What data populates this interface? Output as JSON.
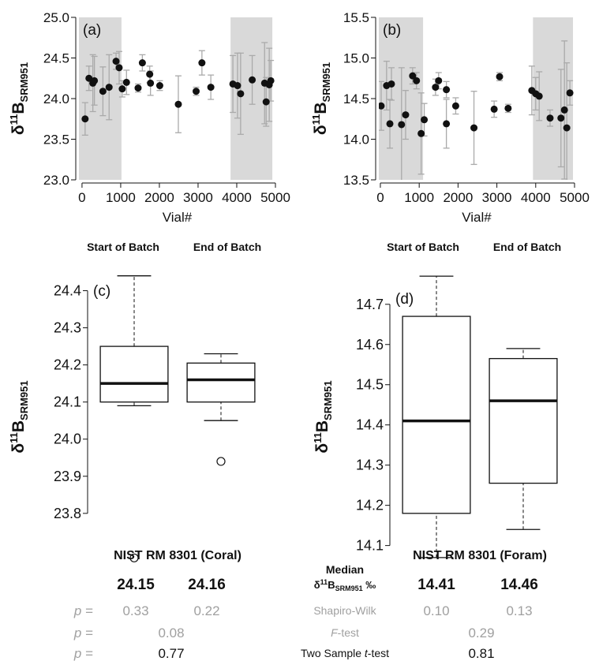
{
  "chart_data": [
    {
      "type": "scatter",
      "panel_label": "(a)",
      "xlabel": "Vial#",
      "ylabel": {
        "symbol": "δ",
        "sup": "11",
        "base": "B",
        "sub": "SRM951"
      },
      "x": [
        80,
        180,
        280,
        320,
        540,
        700,
        880,
        960,
        1040,
        1150,
        1450,
        1560,
        1750,
        1770,
        2010,
        2490,
        2950,
        3100,
        3330,
        3900,
        4020,
        4100,
        4400,
        4720,
        4760,
        4840,
        4880
      ],
      "y": [
        23.75,
        24.25,
        24.19,
        24.22,
        24.09,
        24.14,
        24.46,
        24.38,
        24.12,
        24.2,
        24.13,
        24.44,
        24.3,
        24.19,
        24.16,
        23.93,
        24.09,
        24.44,
        24.14,
        24.18,
        24.16,
        24.06,
        24.23,
        24.19,
        23.96,
        24.17,
        24.22
      ],
      "error": [
        0.2,
        0.15,
        0.35,
        0.3,
        0.3,
        0.4,
        0.1,
        0.2,
        0.1,
        0.15,
        0.05,
        0.1,
        0.1,
        0.15,
        0.06,
        0.35,
        0.05,
        0.15,
        0.15,
        0.35,
        0.4,
        0.5,
        0.3,
        0.5,
        0.3,
        0.45,
        0.25
      ],
      "color": "#111111",
      "error_color": "#aaaaaa",
      "shaded_regions": [
        [
          -80,
          1020
        ],
        [
          3840,
          4920
        ]
      ],
      "shade_color": "#d9d9d9",
      "region_labels": [
        "Start of Batch",
        "End of Batch"
      ],
      "xlim": [
        -80,
        5000
      ],
      "ylim": [
        23.0,
        25.0
      ],
      "xticks": [
        0,
        1000,
        2000,
        3000,
        4000,
        5000
      ],
      "yticks": [
        {
          "value": 23.0,
          "label": "23.0"
        },
        23.5,
        {
          "value": 24.0,
          "label": "24.0"
        },
        24.5,
        {
          "value": 25.0,
          "label": "25.0"
        }
      ]
    },
    {
      "type": "scatter",
      "panel_label": "(b)",
      "xlabel": "Vial#",
      "ylabel": {
        "symbol": "δ",
        "sup": "11",
        "base": "B",
        "sub": "SRM951"
      },
      "x": [
        20,
        160,
        245,
        285,
        545,
        650,
        830,
        930,
        1050,
        1130,
        1420,
        1500,
        1700,
        1700,
        1940,
        2410,
        2930,
        3070,
        3290,
        3900,
        4000,
        4090,
        4370,
        4650,
        4740,
        4800,
        4880
      ],
      "y": [
        14.41,
        14.66,
        14.19,
        14.68,
        14.18,
        14.3,
        14.78,
        14.72,
        14.07,
        14.24,
        14.64,
        14.72,
        14.61,
        14.19,
        14.41,
        14.14,
        14.37,
        14.77,
        14.38,
        14.6,
        14.56,
        14.53,
        14.26,
        14.26,
        14.36,
        14.14,
        14.57
      ],
      "error": [
        0.3,
        0.3,
        0.3,
        0.2,
        0.7,
        0.3,
        0.1,
        0.1,
        0.5,
        0.2,
        0.1,
        0.1,
        0.1,
        0.3,
        0.1,
        0.45,
        0.1,
        0.05,
        0.05,
        0.3,
        0.2,
        0.3,
        0.1,
        0.6,
        0.85,
        0.8,
        0.15
      ],
      "color": "#111111",
      "error_color": "#aaaaaa",
      "shaded_regions": [
        [
          -40,
          1100
        ],
        [
          3930,
          4960
        ]
      ],
      "shade_color": "#d9d9d9",
      "region_labels": [
        "Start of Batch",
        "End of Batch"
      ],
      "xlim": [
        -40,
        5000
      ],
      "ylim": [
        13.5,
        15.5
      ],
      "xticks": [
        0,
        1000,
        2000,
        3000,
        4000,
        5000
      ],
      "yticks": [
        13.5,
        {
          "value": 14.0,
          "label": "14.0"
        },
        14.5,
        {
          "value": 15.0,
          "label": "15.0"
        },
        15.5
      ]
    },
    {
      "type": "box",
      "panel_label": "(c)",
      "xlabel": "NIST RM 8301 (Coral)",
      "ylabel": {
        "symbol": "δ",
        "sup": "11",
        "base": "B",
        "sub": "SRM951"
      },
      "boxes": [
        {
          "whislo": 24.09,
          "q1": 24.1,
          "med": 24.15,
          "q3": 24.25,
          "whishi": 24.44,
          "fliers": [
            23.68
          ]
        },
        {
          "whislo": 24.05,
          "q1": 24.1,
          "med": 24.16,
          "q3": 24.205,
          "whishi": 24.23,
          "fliers": [
            23.94
          ]
        }
      ],
      "color": "#111111",
      "ylim": [
        23.67,
        24.45
      ],
      "yticks": [
        23.8,
        23.9,
        {
          "value": 24.0,
          "label": "24.0"
        },
        24.1,
        24.2,
        24.3,
        24.4
      ]
    },
    {
      "type": "box",
      "panel_label": "(d)",
      "xlabel": "NIST RM 8301 (Foram)",
      "ylabel": {
        "symbol": "δ",
        "sup": "11",
        "base": "B",
        "sub": "SRM951"
      },
      "boxes": [
        {
          "whislo": 14.07,
          "q1": 14.18,
          "med": 14.41,
          "q3": 14.67,
          "whishi": 14.77,
          "fliers": []
        },
        {
          "whislo": 14.14,
          "q1": 14.255,
          "med": 14.46,
          "q3": 14.565,
          "whishi": 14.59,
          "fliers": []
        }
      ],
      "color": "#111111",
      "ylim": [
        14.06,
        14.78
      ],
      "yticks": [
        14.1,
        14.2,
        14.3,
        14.4,
        14.5,
        14.6,
        14.7
      ]
    }
  ],
  "stats_table": {
    "median_label": {
      "title": "Median",
      "symbol": "δ",
      "sup": "11",
      "base": "B",
      "sub": "SRM951",
      "unit": " ‰"
    },
    "median_values": [
      "24.15",
      "24.16",
      "14.41",
      "14.46"
    ],
    "rows": [
      {
        "prefix": [
          "p",
          " ="
        ],
        "label": [
          "Shapiro-Wilk"
        ],
        "values": [
          "0.33",
          "0.22",
          "0.10",
          "0.13"
        ]
      },
      {
        "prefix": [
          "p",
          " ="
        ],
        "label": [
          "F",
          "-test"
        ],
        "values": [
          "0.08",
          "0.29"
        ]
      },
      {
        "prefix": [
          "p",
          " ="
        ],
        "label": [
          "Two Sample ",
          "t",
          "-test"
        ],
        "values": [
          "0.77",
          "0.81"
        ]
      }
    ]
  }
}
